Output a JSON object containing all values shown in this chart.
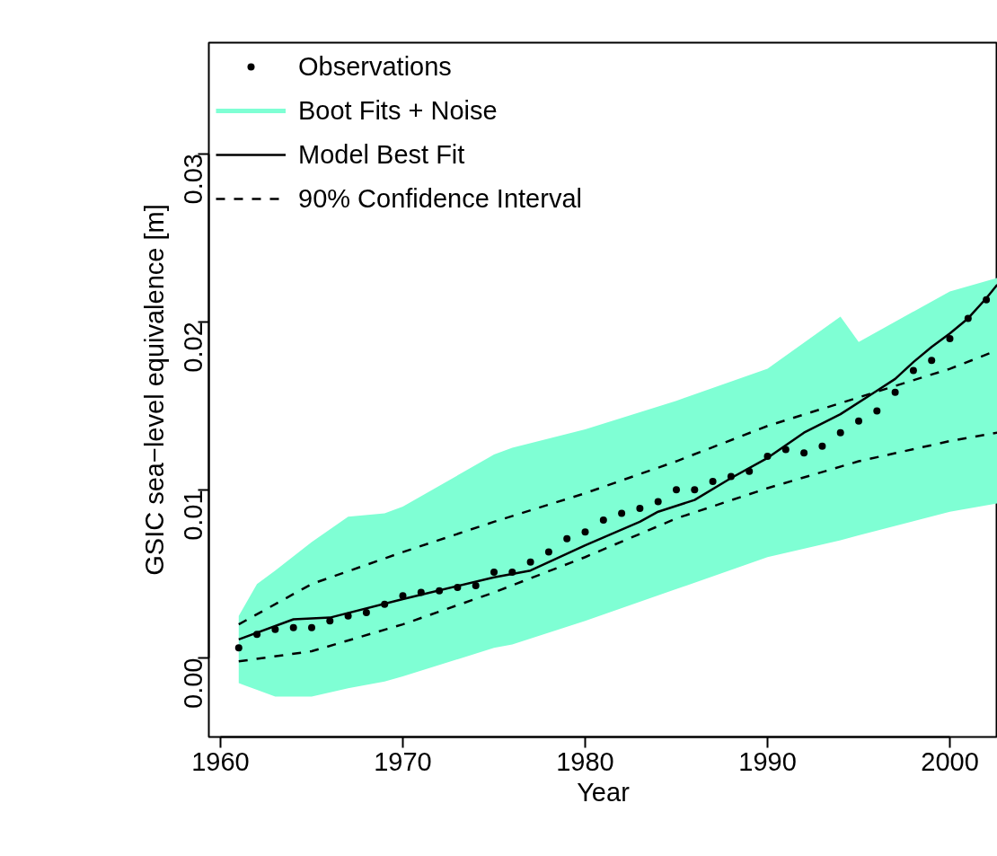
{
  "chart_data": {
    "type": "scatter",
    "xlabel": "Year",
    "ylabel": "GSIC sea−level equivalence [m]",
    "xlim": [
      1959.36,
      2002.61
    ],
    "ylim": [
      -0.0047,
      0.0366
    ],
    "xticks": [
      1960,
      1970,
      1980,
      1990,
      2000
    ],
    "yticks": [
      {
        "value": 0,
        "label": "0.00"
      },
      {
        "value": 0.01,
        "label": "0.01"
      },
      {
        "value": 0.02,
        "label": "0.02"
      },
      {
        "value": 0.03,
        "label": "0.03"
      }
    ],
    "grid": false,
    "legend": "top left",
    "series": [
      {
        "name": "Observations",
        "marker": "circle",
        "color": "#000000",
        "x": [
          1961,
          1962,
          1963,
          1964,
          1965,
          1966,
          1967,
          1968,
          1969,
          1970,
          1971,
          1972,
          1973,
          1974,
          1975,
          1976,
          1977,
          1978,
          1979,
          1980,
          1981,
          1982,
          1983,
          1984,
          1985,
          1986,
          1987,
          1988,
          1989,
          1990,
          1991,
          1992,
          1993,
          1994,
          1995,
          1996,
          1997,
          1998,
          1999,
          2000,
          2001,
          2002
        ],
        "values": [
          0.0006,
          0.0014,
          0.0017,
          0.0018,
          0.0018,
          0.0022,
          0.0025,
          0.0027,
          0.0032,
          0.0037,
          0.0039,
          0.004,
          0.0042,
          0.0043,
          0.0051,
          0.0051,
          0.0057,
          0.0063,
          0.0071,
          0.0075,
          0.0082,
          0.0086,
          0.0089,
          0.0093,
          0.01,
          0.01,
          0.0105,
          0.0108,
          0.0111,
          0.012,
          0.0124,
          0.0122,
          0.0126,
          0.0134,
          0.0141,
          0.0147,
          0.0158,
          0.0171,
          0.0177,
          0.019,
          0.0202,
          0.0213
        ]
      },
      {
        "name": "Boot Fits + Noise",
        "type": "line",
        "color": "#7fffd4",
        "x": [
          1961,
          1962,
          1963,
          1965,
          1967,
          1969,
          1970,
          1975,
          1976,
          1980,
          1985,
          1990,
          1994,
          1995,
          2000,
          2002.6
        ],
        "values": [
          null,
          null,
          null,
          null,
          null,
          null,
          null,
          null,
          null,
          null,
          null,
          null,
          null,
          null,
          null,
          null
        ],
        "upper": [
          0.0025,
          0.0044,
          0.0052,
          0.0069,
          0.0084,
          0.0086,
          0.009,
          0.0121,
          0.0125,
          0.0136,
          0.0153,
          0.0172,
          0.0203,
          0.0188,
          0.0218,
          0.0226
        ],
        "lower": [
          -0.0015,
          -0.0019,
          -0.0023,
          -0.0023,
          -0.0018,
          -0.0014,
          -0.0011,
          0.0006,
          0.0008,
          0.0022,
          0.0041,
          0.006,
          0.007,
          0.0073,
          0.0087,
          0.0092
        ]
      },
      {
        "name": "Model Best Fit",
        "type": "line",
        "line_style": "solid",
        "color": "#000000",
        "x": [
          1961,
          1964,
          1966,
          1970,
          1975,
          1977,
          1980,
          1983,
          1984,
          1986,
          1988,
          1990,
          1992,
          1994,
          1996,
          1997,
          1998,
          1999,
          2000,
          2001,
          2002,
          2002.6
        ],
        "values": [
          0.0011,
          0.0023,
          0.0024,
          0.0035,
          0.0048,
          0.0052,
          0.0067,
          0.0081,
          0.0087,
          0.0094,
          0.0107,
          0.0119,
          0.0134,
          0.0145,
          0.0159,
          0.0166,
          0.0176,
          0.0185,
          0.0193,
          0.0202,
          0.0214,
          0.0222
        ]
      },
      {
        "name": "90% Confidence Interval",
        "type": "line",
        "line_style": "dashed",
        "color": "#000000",
        "x": [
          1961,
          1965,
          1970,
          1975,
          1980,
          1985,
          1990,
          1995,
          2000,
          2002.6
        ],
        "values": [
          0.002,
          0.0044,
          0.0063,
          0.0081,
          0.0098,
          0.0117,
          0.0138,
          0.0155,
          0.0172,
          0.0183
        ]
      },
      {
        "type": "line",
        "line_style": "dashed",
        "color": "#000000",
        "x": [
          1961,
          1965,
          1970,
          1975,
          1980,
          1985,
          1990,
          1995,
          2000,
          2002.6
        ],
        "values": [
          -0.0002,
          0.0004,
          0.002,
          0.0039,
          0.006,
          0.0083,
          0.0101,
          0.0117,
          0.0129,
          0.0134
        ]
      }
    ]
  }
}
